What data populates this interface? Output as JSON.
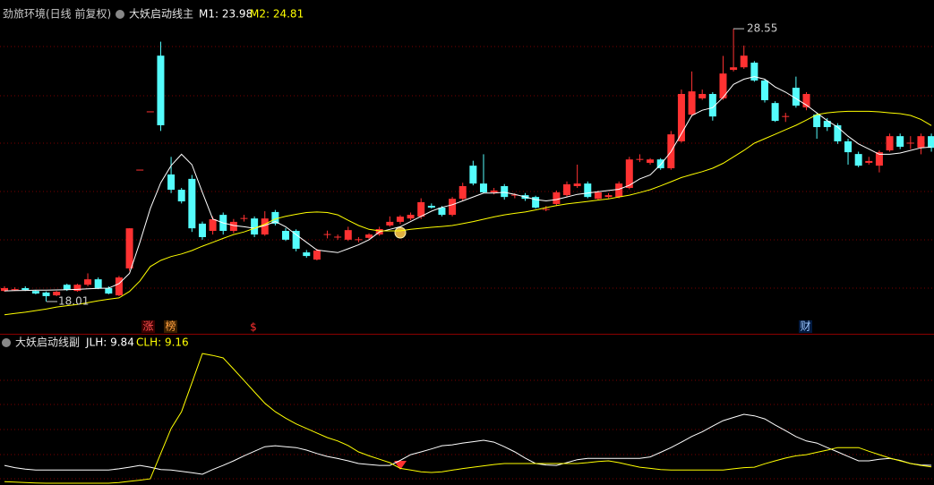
{
  "chart_data": [
    {
      "type": "candlestick",
      "title": "劲旅环境(日线 前复权)",
      "subtitle": "大妖启动线主",
      "up_color": "#ff3232",
      "down_color": "#54fcfc",
      "ylim": [
        16.8,
        29.66
      ],
      "open": [
        18.42,
        18.45,
        18.53,
        18.42,
        18.36,
        18.25,
        18.66,
        18.42,
        18.66,
        18.87,
        18.53,
        18.25,
        19.29,
        23.09,
        25.34,
        27.51,
        22.92,
        22.33,
        22.75,
        21.02,
        20.74,
        21.36,
        20.74,
        21.22,
        21.22,
        20.6,
        21.47,
        20.74,
        20.74,
        19.91,
        19.63,
        20.6,
        20.5,
        20.4,
        20.4,
        20.47,
        20.6,
        20.95,
        21.09,
        21.22,
        21.29,
        21.71,
        21.64,
        21.36,
        21.98,
        23.26,
        22.57,
        22.23,
        22.47,
        22.12,
        22.12,
        22.05,
        21.57,
        21.78,
        22.12,
        22.47,
        22.57,
        21.98,
        22.05,
        22.05,
        22.4,
        23.5,
        23.37,
        23.5,
        23.16,
        24.2,
        25.23,
        25.86,
        26.03,
        25.86,
        26.96,
        27.06,
        27.24,
        26.55,
        25.68,
        25.16,
        26.27,
        25.51,
        25.23,
        24.99,
        24.82,
        24.2,
        23.71,
        23.37,
        23.26,
        23.85,
        24.4,
        24.13,
        23.95,
        24.4
      ],
      "high": [
        18.6,
        18.56,
        18.6,
        18.46,
        18.4,
        18.42,
        18.7,
        18.7,
        19.1,
        18.94,
        18.6,
        19.0,
        20.84,
        23.09,
        25.34,
        28.05,
        23.6,
        22.4,
        22.9,
        21.1,
        21.3,
        21.45,
        21.2,
        21.36,
        21.3,
        21.5,
        21.55,
        20.85,
        20.8,
        20.0,
        20.05,
        20.75,
        20.6,
        20.9,
        20.5,
        20.65,
        20.9,
        21.3,
        21.35,
        21.45,
        22.0,
        21.8,
        21.7,
        22.05,
        22.6,
        23.45,
        23.7,
        22.4,
        22.55,
        22.2,
        22.2,
        22.1,
        21.7,
        22.3,
        22.65,
        23.3,
        22.65,
        22.3,
        22.2,
        22.65,
        23.6,
        23.7,
        23.55,
        23.55,
        24.6,
        26.2,
        26.9,
        26.2,
        26.1,
        27.5,
        28.55,
        27.9,
        27.3,
        26.6,
        25.75,
        25.3,
        26.7,
        26.1,
        25.3,
        25.1,
        24.9,
        24.3,
        23.8,
        23.6,
        23.85,
        24.5,
        24.5,
        24.4,
        24.5,
        24.5
      ],
      "low": [
        18.39,
        18.42,
        18.42,
        18.29,
        18.01,
        18.22,
        18.42,
        18.39,
        18.6,
        18.49,
        18.29,
        18.22,
        19.2,
        23.09,
        25.34,
        24.6,
        22.2,
        21.8,
        20.7,
        20.4,
        20.6,
        20.6,
        20.65,
        21.1,
        20.5,
        20.55,
        20.95,
        20.35,
        19.95,
        19.7,
        19.6,
        20.45,
        20.4,
        20.35,
        20.3,
        20.42,
        20.55,
        20.9,
        21.0,
        21.15,
        21.2,
        21.6,
        21.3,
        21.3,
        21.9,
        22.5,
        22.2,
        22.15,
        21.95,
        22.0,
        21.9,
        21.6,
        21.5,
        21.7,
        22.05,
        22.4,
        22.0,
        21.95,
        22.0,
        22.0,
        22.35,
        23.4,
        23.3,
        23.1,
        23.1,
        24.15,
        25.15,
        25.8,
        25.0,
        25.8,
        26.9,
        27.0,
        26.5,
        25.7,
        24.95,
        24.95,
        25.5,
        25.4,
        24.3,
        24.6,
        24.1,
        23.3,
        23.2,
        23.3,
        23.0,
        23.8,
        23.9,
        23.9,
        23.7,
        23.8
      ],
      "close": [
        18.53,
        18.49,
        18.46,
        18.32,
        18.22,
        18.39,
        18.46,
        18.66,
        18.87,
        18.53,
        18.32,
        18.94,
        20.84,
        23.09,
        25.34,
        24.82,
        22.33,
        21.88,
        20.84,
        20.5,
        21.19,
        20.74,
        21.09,
        21.22,
        20.6,
        21.22,
        21.02,
        20.4,
        20.05,
        19.77,
        19.98,
        20.6,
        20.5,
        20.77,
        20.4,
        20.6,
        20.81,
        21.09,
        21.29,
        21.36,
        21.85,
        21.64,
        21.36,
        21.98,
        22.47,
        22.57,
        22.23,
        22.3,
        22.05,
        22.12,
        21.98,
        21.64,
        21.57,
        22.23,
        22.54,
        22.57,
        22.05,
        22.23,
        22.12,
        22.57,
        23.5,
        23.5,
        23.5,
        23.16,
        24.47,
        26.03,
        26.13,
        26.03,
        25.16,
        26.82,
        27.06,
        27.51,
        26.55,
        25.79,
        24.99,
        25.16,
        25.58,
        26.03,
        24.75,
        24.75,
        24.2,
        23.78,
        23.26,
        23.44,
        23.78,
        24.4,
        23.99,
        24.13,
        24.4,
        23.95
      ],
      "series": [
        {
          "name": "M1: 23.98",
          "color": "#ffffff",
          "values": [
            18.42,
            18.43,
            18.44,
            18.45,
            18.45,
            18.46,
            18.47,
            18.48,
            18.5,
            18.52,
            18.53,
            18.7,
            19.1,
            20.3,
            21.6,
            22.6,
            23.26,
            23.7,
            23.3,
            22.23,
            21.2,
            21.05,
            20.95,
            20.9,
            20.84,
            20.95,
            21.1,
            20.9,
            20.6,
            20.3,
            20.0,
            19.95,
            19.9,
            20.05,
            20.2,
            20.4,
            20.7,
            20.8,
            20.9,
            21.1,
            21.3,
            21.5,
            21.65,
            21.75,
            21.9,
            22.05,
            22.2,
            22.2,
            22.23,
            22.15,
            22.05,
            21.95,
            21.9,
            21.95,
            22.05,
            22.15,
            22.2,
            22.25,
            22.3,
            22.35,
            22.5,
            22.75,
            22.9,
            23.3,
            23.8,
            24.5,
            25.2,
            25.4,
            25.5,
            25.9,
            26.4,
            26.6,
            26.7,
            26.6,
            26.3,
            26.1,
            25.85,
            25.6,
            25.3,
            25.0,
            24.75,
            24.4,
            24.1,
            23.9,
            23.7,
            23.7,
            23.75,
            23.85,
            23.95,
            23.98
          ]
        },
        {
          "name": "M2: 24.81",
          "color": "#ffff00",
          "values": [
            17.5,
            17.55,
            17.6,
            17.66,
            17.72,
            17.8,
            17.85,
            17.9,
            17.97,
            18.04,
            18.1,
            18.15,
            18.4,
            18.8,
            19.36,
            19.6,
            19.75,
            19.85,
            19.98,
            20.15,
            20.3,
            20.45,
            20.6,
            20.7,
            20.84,
            21.0,
            21.2,
            21.3,
            21.38,
            21.45,
            21.47,
            21.45,
            21.36,
            21.15,
            20.95,
            20.8,
            20.74,
            20.74,
            20.74,
            20.8,
            20.84,
            20.88,
            20.91,
            20.95,
            21.02,
            21.1,
            21.19,
            21.28,
            21.36,
            21.42,
            21.47,
            21.55,
            21.64,
            21.72,
            21.78,
            21.83,
            21.88,
            21.93,
            21.98,
            22.05,
            22.12,
            22.22,
            22.33,
            22.48,
            22.64,
            22.8,
            22.92,
            23.03,
            23.16,
            23.35,
            23.6,
            23.85,
            24.13,
            24.3,
            24.47,
            24.65,
            24.82,
            25.02,
            25.23,
            25.3,
            25.34,
            25.36,
            25.36,
            25.36,
            25.34,
            25.3,
            25.27,
            25.2,
            25.05,
            24.81
          ]
        }
      ],
      "high_label": 28.55,
      "low_label": 18.01,
      "signals": [
        "涨",
        "榜",
        "$",
        "财"
      ]
    },
    {
      "type": "line",
      "title": "大妖启动线副",
      "ylim": [
        1.2,
        66.3
      ],
      "series": [
        {
          "name": "JLH: 9.84",
          "color": "#ffffff",
          "values": [
            9.8,
            8.8,
            8.2,
            7.8,
            7.8,
            7.8,
            7.8,
            7.8,
            7.8,
            7.8,
            7.8,
            8.3,
            9.0,
            9.8,
            9.0,
            8.0,
            7.8,
            7.2,
            6.6,
            5.9,
            8.0,
            9.8,
            11.8,
            14.0,
            16.0,
            18.0,
            18.4,
            18.0,
            17.6,
            16.5,
            15.0,
            13.7,
            12.8,
            11.8,
            10.6,
            10.2,
            9.8,
            9.8,
            12.0,
            14.5,
            15.7,
            17.0,
            18.4,
            18.8,
            19.6,
            20.2,
            20.8,
            20.0,
            18.0,
            15.7,
            13.0,
            10.6,
            10.0,
            9.8,
            11.0,
            12.3,
            12.9,
            12.9,
            12.9,
            12.9,
            12.9,
            12.9,
            13.5,
            15.5,
            17.6,
            20.0,
            22.5,
            24.5,
            27.0,
            29.4,
            30.8,
            32.2,
            31.5,
            30.2,
            27.5,
            25.0,
            22.4,
            20.5,
            19.6,
            17.6,
            15.7,
            13.7,
            11.8,
            11.8,
            12.5,
            12.9,
            12.0,
            10.6,
            10.0,
            9.84
          ]
        },
        {
          "name": "CLH: 9.16",
          "color": "#ffff00",
          "values": [
            2.7,
            2.5,
            2.3,
            2.1,
            2.0,
            2.0,
            2.0,
            2.0,
            2.0,
            2.0,
            2.0,
            2.3,
            2.8,
            3.3,
            3.9,
            15.0,
            26.0,
            33.3,
            46.0,
            58.8,
            58.0,
            56.9,
            52.0,
            47.0,
            42.0,
            37.0,
            33.3,
            30.5,
            28.0,
            26.0,
            24.0,
            22.0,
            20.5,
            18.5,
            15.7,
            14.0,
            12.5,
            11.0,
            8.5,
            7.8,
            7.0,
            6.7,
            7.0,
            7.7,
            8.4,
            9.0,
            9.6,
            10.2,
            10.6,
            10.6,
            10.6,
            10.6,
            10.6,
            10.6,
            10.6,
            10.6,
            11.0,
            11.5,
            11.8,
            11.0,
            10.0,
            9.0,
            8.5,
            8.0,
            7.8,
            7.8,
            7.8,
            7.8,
            7.8,
            7.8,
            8.3,
            8.8,
            9.0,
            10.5,
            11.8,
            13.0,
            14.0,
            14.5,
            15.5,
            16.5,
            17.6,
            17.6,
            17.6,
            16.0,
            14.5,
            13.0,
            11.8,
            10.6,
            9.8,
            9.16
          ]
        }
      ]
    }
  ]
}
